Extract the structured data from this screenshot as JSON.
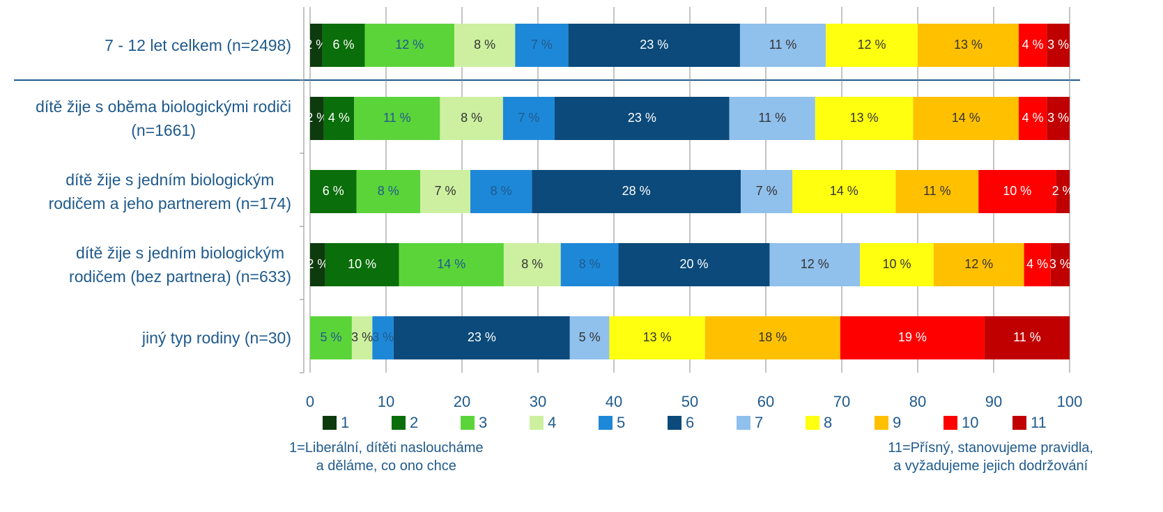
{
  "chart_data": {
    "type": "stacked_bar_horizontal",
    "categories": [
      "7 - 12 let celkem (n=2498)",
      "dítě žije s oběma biologickými rodiči\n(n=1661)",
      "dítě žije s jedním biologickým\nrodičem a jeho partnerem (n=174)",
      "dítě žije s jedním biologickým\nrodičem (bez partnera) (n=633)",
      "jiný typ rodiny (n=30)"
    ],
    "series": [
      {
        "name": "1",
        "color": "#0d3b0d",
        "values": [
          1.6,
          1.8,
          0,
          2.0,
          0
        ],
        "value_labels": [
          "2 %",
          "2 %",
          null,
          "2 %",
          null
        ]
      },
      {
        "name": "2",
        "color": "#0a6e0a",
        "values": [
          5.6,
          4.0,
          6.1,
          9.7,
          0
        ],
        "value_labels": [
          "6 %",
          "4 %",
          "6 %",
          "10 %",
          null
        ]
      },
      {
        "name": "3",
        "color": "#5bd43a",
        "values": [
          11.8,
          11.3,
          8.4,
          13.8,
          5.5
        ],
        "value_labels": [
          "12 %",
          "11 %",
          "8 %",
          "14 %",
          "5 %"
        ]
      },
      {
        "name": "4",
        "color": "#ccf0a0",
        "values": [
          8.0,
          8.3,
          6.6,
          7.5,
          2.7
        ],
        "value_labels": [
          "8 %",
          "8 %",
          "7 %",
          "8 %",
          "3 %"
        ]
      },
      {
        "name": "5",
        "color": "#1e88d8",
        "values": [
          7.0,
          6.8,
          8.1,
          7.6,
          2.8
        ],
        "value_labels": [
          "7 %",
          "7 %",
          "8 %",
          "8 %",
          "3 %"
        ]
      },
      {
        "name": "6",
        "color": "#0b4a7a",
        "values": [
          22.6,
          23.0,
          27.5,
          19.9,
          23.2
        ],
        "value_labels": [
          "23 %",
          "23 %",
          "28 %",
          "20 %",
          "23 %"
        ]
      },
      {
        "name": "7",
        "color": "#90c0ec",
        "values": [
          11.3,
          11.3,
          6.8,
          11.9,
          5.2
        ],
        "value_labels": [
          "11 %",
          "11 %",
          "7 %",
          "12 %",
          "5 %"
        ]
      },
      {
        "name": "8",
        "color": "#ffff10",
        "values": [
          12.1,
          12.9,
          13.6,
          9.7,
          12.6
        ],
        "value_labels": [
          "12 %",
          "13 %",
          "14 %",
          "10 %",
          "13 %"
        ]
      },
      {
        "name": "9",
        "color": "#ffc000",
        "values": [
          13.3,
          13.9,
          10.9,
          11.9,
          17.8
        ],
        "value_labels": [
          "13 %",
          "14 %",
          "11 %",
          "12 %",
          "18 %"
        ]
      },
      {
        "name": "10",
        "color": "#ff0000",
        "values": [
          3.7,
          3.7,
          10.2,
          3.5,
          19.0
        ],
        "value_labels": [
          "4 %",
          "4 %",
          "10 %",
          "4 %",
          "19 %"
        ]
      },
      {
        "name": "11",
        "color": "#c00000",
        "values": [
          3.0,
          3.0,
          1.8,
          2.5,
          11.2
        ],
        "value_labels": [
          "3 %",
          "3 %",
          "2 %",
          "3 %",
          "11 %"
        ]
      }
    ],
    "xlim": [
      0,
      100
    ],
    "xticks": [
      0,
      10,
      20,
      30,
      40,
      50,
      60,
      70,
      80,
      90,
      100
    ],
    "grid": true,
    "legend_note_left": "1=Liberální, dítěti nasloucháme\na děláme, co ono chce",
    "legend_note_right": "11=Přísný, stanovujeme pravidla,\na vyžadujeme jejich dodržování"
  }
}
